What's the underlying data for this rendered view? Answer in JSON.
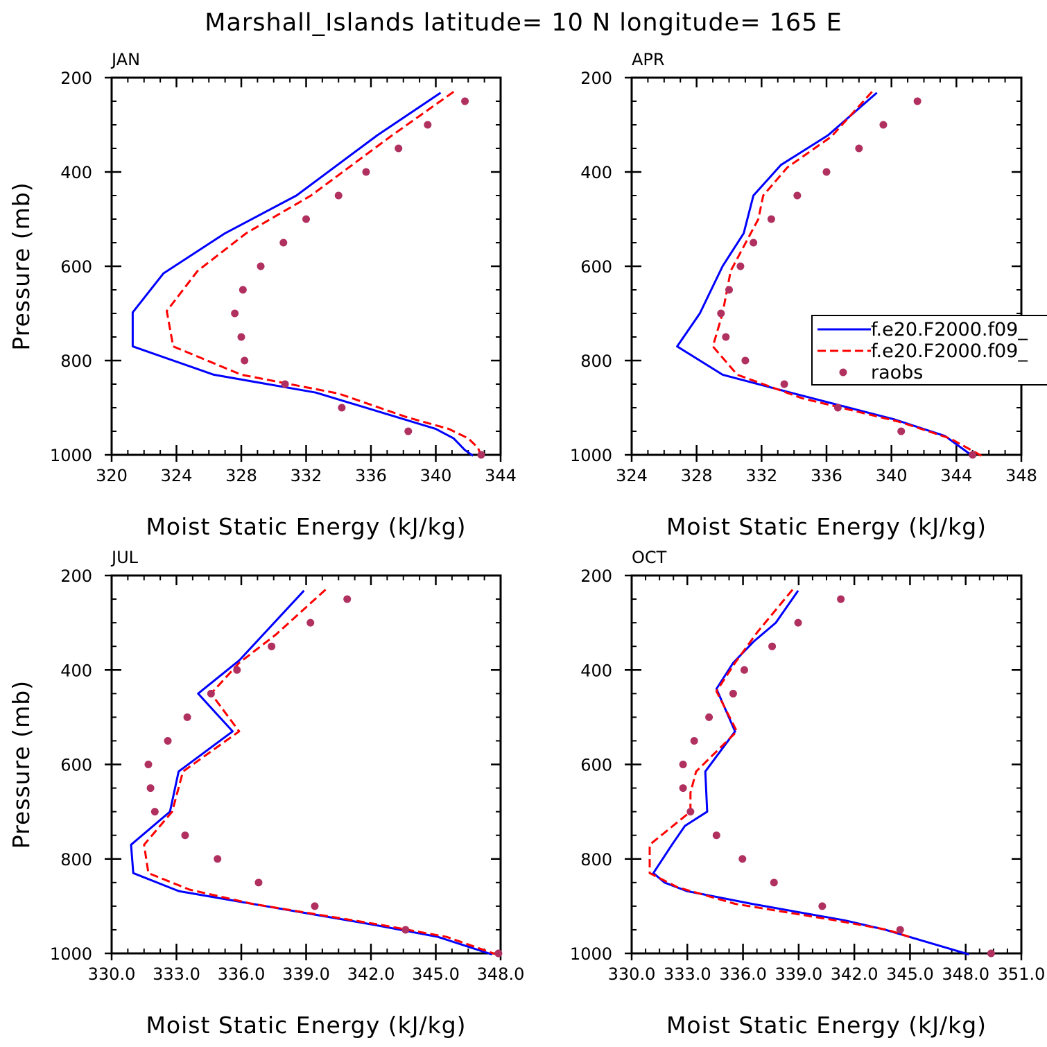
{
  "title": "Marshall_Islands  latitude= 10 N longitude= 165 E",
  "colors": {
    "model1": "#0000ff",
    "model2": "#ff0000",
    "raobs": "#b03060"
  },
  "legend": {
    "entries": [
      "f.e20.F2000.f09_",
      "f.e20.F2000.f09_",
      "raobs"
    ]
  },
  "chart_data": [
    {
      "type": "line",
      "panel": "JAN",
      "xlabel": "Moist Static Energy (kJ/kg)",
      "ylabel": "Pressure (mb)",
      "xlim": [
        320,
        344
      ],
      "ylim": [
        200,
        1000
      ],
      "xticks": [
        320,
        324,
        328,
        332,
        336,
        340,
        344
      ],
      "xtick_labels": [
        "320",
        "324",
        "328",
        "332",
        "336",
        "340",
        "344"
      ],
      "yticks": [
        200,
        400,
        600,
        800,
        1000
      ],
      "ytick_labels": [
        "200",
        "400",
        "600",
        "800",
        "1000"
      ],
      "series": [
        {
          "name": "model1",
          "style": "solid",
          "x": [
            340.3,
            336.4,
            331.4,
            327.0,
            323.2,
            321.3,
            321.3,
            326.3,
            332.6,
            337.6,
            340.0,
            341.1,
            341.8,
            342.3
          ],
          "y": [
            232,
            322,
            450,
            530,
            615,
            698,
            770,
            830,
            868,
            920,
            945,
            965,
            990,
            1002
          ]
        },
        {
          "name": "model2",
          "style": "dashed",
          "x": [
            341.1,
            337.2,
            332.3,
            328.3,
            325.3,
            323.4,
            323.8,
            328.0,
            334.0,
            338.2,
            340.8,
            342.0,
            342.6,
            342.8
          ],
          "y": [
            230,
            325,
            450,
            530,
            610,
            695,
            770,
            830,
            870,
            920,
            945,
            965,
            985,
            1002
          ]
        },
        {
          "name": "raobs",
          "style": "markers",
          "x": [
            341.8,
            339.5,
            337.7,
            335.7,
            334.0,
            332.0,
            330.6,
            329.2,
            328.1,
            327.6,
            328.0,
            328.2,
            330.7,
            334.2,
            338.3,
            342.8
          ],
          "y": [
            250,
            300,
            350,
            400,
            450,
            500,
            550,
            600,
            650,
            700,
            750,
            800,
            850,
            900,
            950,
            1000
          ]
        }
      ]
    },
    {
      "type": "line",
      "panel": "APR",
      "xlabel": "Moist Static Energy (kJ/kg)",
      "ylabel": "",
      "xlim": [
        324,
        348
      ],
      "ylim": [
        200,
        1000
      ],
      "xticks": [
        324,
        328,
        332,
        336,
        340,
        344,
        348
      ],
      "xtick_labels": [
        "324",
        "328",
        "332",
        "336",
        "340",
        "344",
        "348"
      ],
      "yticks": [
        200,
        400,
        600,
        800,
        1000
      ],
      "ytick_labels": [
        "200",
        "400",
        "600",
        "800",
        "1000"
      ],
      "series": [
        {
          "name": "model1",
          "style": "solid",
          "x": [
            339.1,
            336.1,
            333.2,
            331.5,
            330.9,
            329.6,
            328.2,
            326.8,
            329.6,
            334.0,
            340.2,
            343.3,
            345.1
          ],
          "y": [
            232,
            322,
            385,
            450,
            530,
            600,
            700,
            770,
            830,
            870,
            925,
            960,
            1005
          ]
        },
        {
          "name": "model2",
          "style": "dashed",
          "x": [
            338.8,
            336.3,
            333.6,
            332.1,
            331.8,
            331.1,
            330.1,
            329.6,
            329.0,
            330.5,
            334.5,
            340.5,
            343.6,
            345.6
          ],
          "y": [
            230,
            325,
            390,
            450,
            500,
            545,
            610,
            700,
            770,
            830,
            880,
            930,
            965,
            1003
          ]
        },
        {
          "name": "raobs",
          "style": "markers",
          "x": [
            341.6,
            339.5,
            338.0,
            336.0,
            334.2,
            332.6,
            331.5,
            330.7,
            330.0,
            329.5,
            329.8,
            331.0,
            333.4,
            336.7,
            340.6,
            345.0
          ],
          "y": [
            250,
            300,
            350,
            400,
            450,
            500,
            550,
            600,
            650,
            700,
            750,
            800,
            850,
            900,
            950,
            1000
          ]
        }
      ]
    },
    {
      "type": "line",
      "panel": "JUL",
      "xlabel": "Moist Static Energy (kJ/kg)",
      "ylabel": "Pressure (mb)",
      "xlim": [
        330.0,
        348.0
      ],
      "ylim": [
        200,
        1000
      ],
      "xticks": [
        330,
        333,
        336,
        339,
        342,
        345,
        348
      ],
      "xtick_labels": [
        "330.0",
        "333.0",
        "336.0",
        "339.0",
        "342.0",
        "345.0",
        "348.0"
      ],
      "yticks": [
        200,
        400,
        600,
        800,
        1000
      ],
      "ytick_labels": [
        "200",
        "400",
        "600",
        "800",
        "1000"
      ],
      "series": [
        {
          "name": "model1",
          "style": "solid",
          "x": [
            338.9,
            335.9,
            334.0,
            335.6,
            333.1,
            332.7,
            330.9,
            331.0,
            333.1,
            336.5,
            342.2,
            345.1,
            347.6
          ],
          "y": [
            232,
            380,
            450,
            530,
            615,
            700,
            770,
            830,
            868,
            895,
            940,
            965,
            1002
          ]
        },
        {
          "name": "model2",
          "style": "dashed",
          "x": [
            339.9,
            337.6,
            335.9,
            334.6,
            335.9,
            333.3,
            332.8,
            331.5,
            331.7,
            333.6,
            336.5,
            342.5,
            345.5,
            347.8
          ],
          "y": [
            230,
            325,
            385,
            450,
            530,
            615,
            700,
            770,
            830,
            865,
            895,
            940,
            965,
            1002
          ]
        },
        {
          "name": "raobs",
          "style": "markers",
          "x": [
            340.9,
            339.2,
            337.4,
            335.8,
            334.6,
            333.5,
            332.6,
            331.7,
            331.8,
            332.0,
            333.4,
            334.9,
            336.8,
            339.4,
            343.6,
            347.9
          ],
          "y": [
            250,
            300,
            350,
            400,
            450,
            500,
            550,
            600,
            650,
            700,
            750,
            800,
            850,
            900,
            950,
            1000
          ]
        }
      ]
    },
    {
      "type": "line",
      "panel": "OCT",
      "xlabel": "Moist Static Energy (kJ/kg)",
      "ylabel": "",
      "xlim": [
        330.03,
        351.03
      ],
      "ylim": [
        200,
        1000
      ],
      "xticks": [
        330.03,
        333.03,
        336.03,
        339.03,
        342.03,
        345.03,
        348.03,
        351.03
      ],
      "xtick_labels": [
        "330.0",
        "333.0",
        "336.0",
        "339.0",
        "342.0",
        "345.0",
        "348.0",
        "351.0"
      ],
      "yticks": [
        200,
        400,
        600,
        800,
        1000
      ],
      "ytick_labels": [
        "200",
        "400",
        "600",
        "800",
        "1000"
      ],
      "series": [
        {
          "name": "model1",
          "style": "solid",
          "x": [
            339.0,
            337.8,
            336.6,
            335.5,
            334.6,
            335.6,
            334.0,
            334.1,
            332.9,
            332.2,
            331.2,
            331.8,
            333.0,
            336.5,
            341.5,
            343.7,
            345.0,
            348.2
          ],
          "y": [
            232,
            300,
            340,
            385,
            440,
            530,
            615,
            700,
            730,
            770,
            830,
            850,
            868,
            895,
            930,
            950,
            965,
            1002
          ]
        },
        {
          "name": "model2",
          "style": "dashed",
          "x": [
            338.7,
            336.8,
            335.6,
            334.6,
            335.7,
            333.5,
            333.2,
            333.2,
            331.0,
            331.0,
            332.5,
            335.6,
            341.0,
            343.8,
            345.0
          ],
          "y": [
            230,
            320,
            385,
            445,
            530,
            615,
            660,
            700,
            770,
            830,
            860,
            895,
            930,
            950,
            965
          ]
        },
        {
          "name": "raobs",
          "style": "markers",
          "x": [
            341.3,
            339.0,
            337.6,
            336.1,
            335.5,
            334.2,
            333.4,
            332.8,
            332.8,
            333.2,
            334.6,
            336.0,
            337.7,
            340.3,
            344.5,
            349.4
          ],
          "y": [
            250,
            300,
            350,
            400,
            450,
            500,
            550,
            600,
            650,
            700,
            750,
            800,
            850,
            900,
            950,
            1000
          ]
        }
      ]
    }
  ]
}
